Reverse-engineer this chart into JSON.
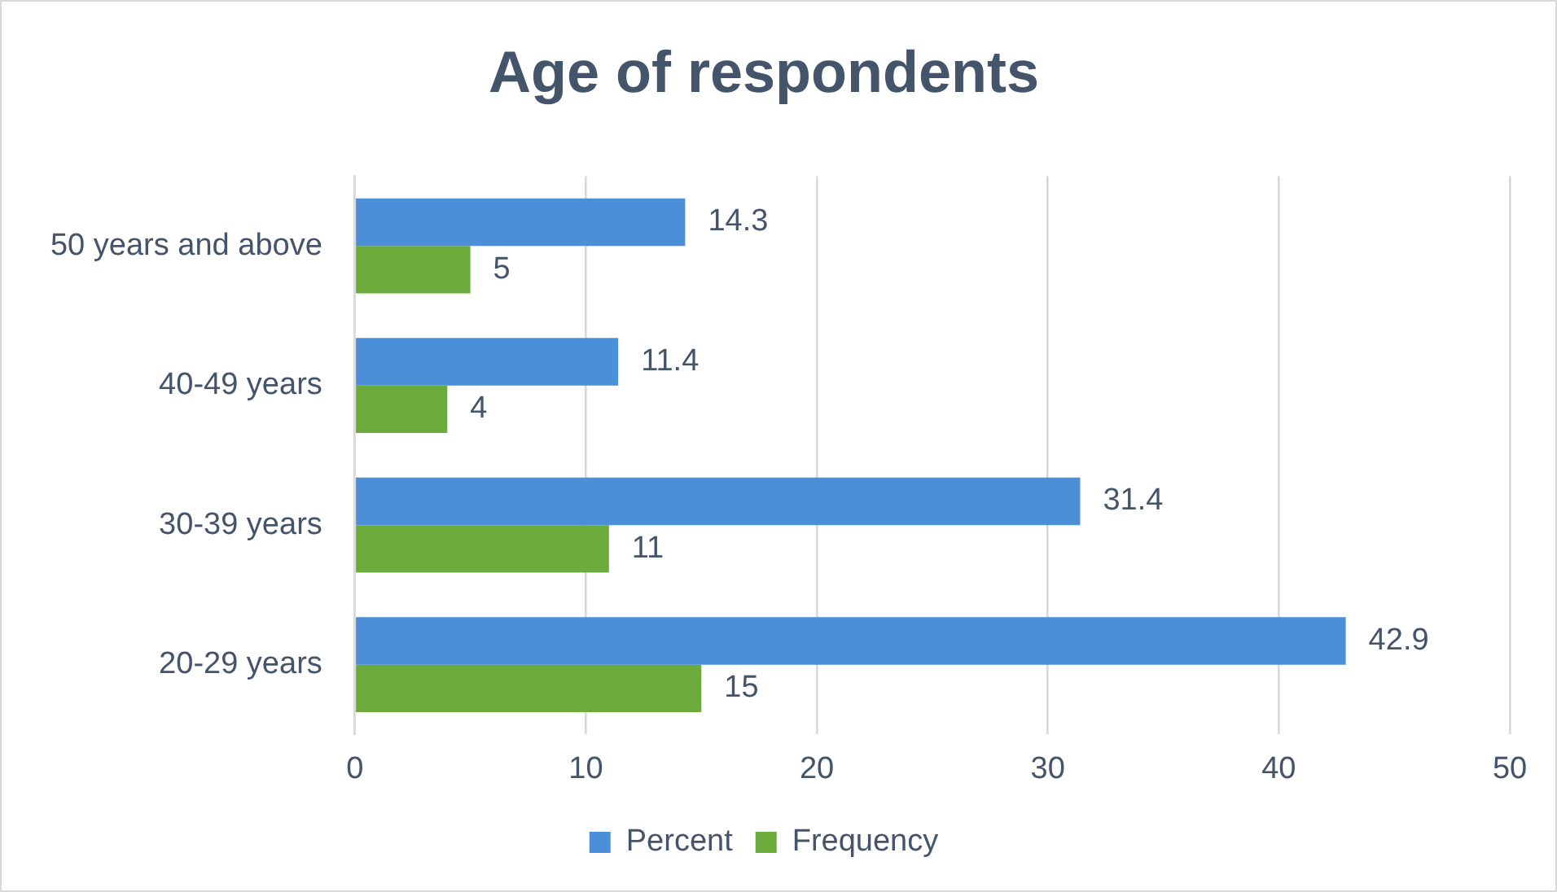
{
  "chart_data": {
    "type": "bar",
    "orientation": "horizontal",
    "title": "Age of respondents",
    "categories": [
      "50 years and above",
      "40-49 years",
      "30-39 years",
      "20-29 years"
    ],
    "series": [
      {
        "name": "Percent",
        "color": "#4a8fd8",
        "values": [
          14.3,
          11.4,
          31.4,
          42.9
        ]
      },
      {
        "name": "Frequency",
        "color": "#6aab3c",
        "values": [
          5,
          4,
          11,
          15
        ]
      }
    ],
    "xlim": [
      0,
      50
    ],
    "xticks": [
      0,
      10,
      20,
      30,
      40,
      50
    ],
    "grid": "x",
    "legend": "bottom",
    "data_labels": true
  }
}
